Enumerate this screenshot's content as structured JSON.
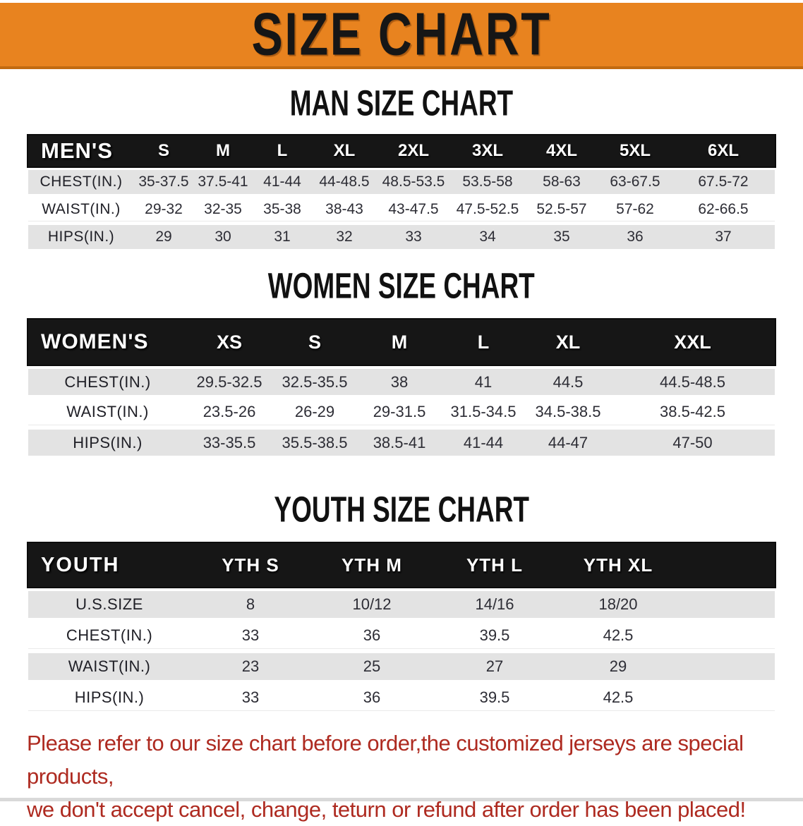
{
  "banner": {
    "title": "SIZE CHART"
  },
  "colors": {
    "banner_bg": "#E8831F",
    "banner_border": "#C26A10",
    "table_header_bg": "#161616",
    "row_shade_gray": "#E3E3E3",
    "notice_red": "#AE2A20"
  },
  "sections": [
    {
      "heading": "MAN SIZE CHART",
      "table": {
        "header_label": "MEN'S",
        "sizes": [
          "S",
          "M",
          "L",
          "XL",
          "2XL",
          "3XL",
          "4XL",
          "5XL",
          "6XL"
        ],
        "rows": [
          {
            "label": "CHEST(IN.)",
            "values": [
              "35-37.5",
              "37.5-41",
              "41-44",
              "44-48.5",
              "48.5-53.5",
              "53.5-58",
              "58-63",
              "63-67.5",
              "67.5-72"
            ]
          },
          {
            "label": "WAIST(IN.)",
            "values": [
              "29-32",
              "32-35",
              "35-38",
              "38-43",
              "43-47.5",
              "47.5-52.5",
              "52.5-57",
              "57-62",
              "62-66.5"
            ]
          },
          {
            "label": "HIPS(IN.)",
            "values": [
              "29",
              "30",
              "31",
              "32",
              "33",
              "34",
              "35",
              "36",
              "37"
            ]
          }
        ]
      }
    },
    {
      "heading": "WOMEN SIZE CHART",
      "table": {
        "header_label": "WOMEN'S",
        "sizes": [
          "XS",
          "S",
          "M",
          "L",
          "XL",
          "XXL"
        ],
        "rows": [
          {
            "label": "CHEST(IN.)",
            "values": [
              "29.5-32.5",
              "32.5-35.5",
              "38",
              "41",
              "44.5",
              "44.5-48.5"
            ]
          },
          {
            "label": "WAIST(IN.)",
            "values": [
              "23.5-26",
              "26-29",
              "29-31.5",
              "31.5-34.5",
              "34.5-38.5",
              "38.5-42.5"
            ]
          },
          {
            "label": "HIPS(IN.)",
            "values": [
              "33-35.5",
              "35.5-38.5",
              "38.5-41",
              "41-44",
              "44-47",
              "47-50"
            ]
          }
        ]
      }
    },
    {
      "heading": "YOUTH SIZE CHART",
      "table": {
        "header_label": "YOUTH",
        "sizes": [
          "YTH S",
          "YTH M",
          "YTH L",
          "YTH XL"
        ],
        "rows": [
          {
            "label": "U.S.SIZE",
            "values": [
              "8",
              "10/12",
              "14/16",
              "18/20"
            ]
          },
          {
            "label": "CHEST(IN.)",
            "values": [
              "33",
              "36",
              "39.5",
              "42.5"
            ]
          },
          {
            "label": "WAIST(IN.)",
            "values": [
              "23",
              "25",
              "27",
              "29"
            ]
          },
          {
            "label": "HIPS(IN.)",
            "values": [
              "33",
              "36",
              "39.5",
              "42.5"
            ]
          }
        ]
      }
    }
  ],
  "footer": {
    "line1": "Please refer to our size chart before order,the customized jerseys are special products,",
    "line2": "we don't accept cancel, change, teturn or refund after order has been placed!"
  }
}
